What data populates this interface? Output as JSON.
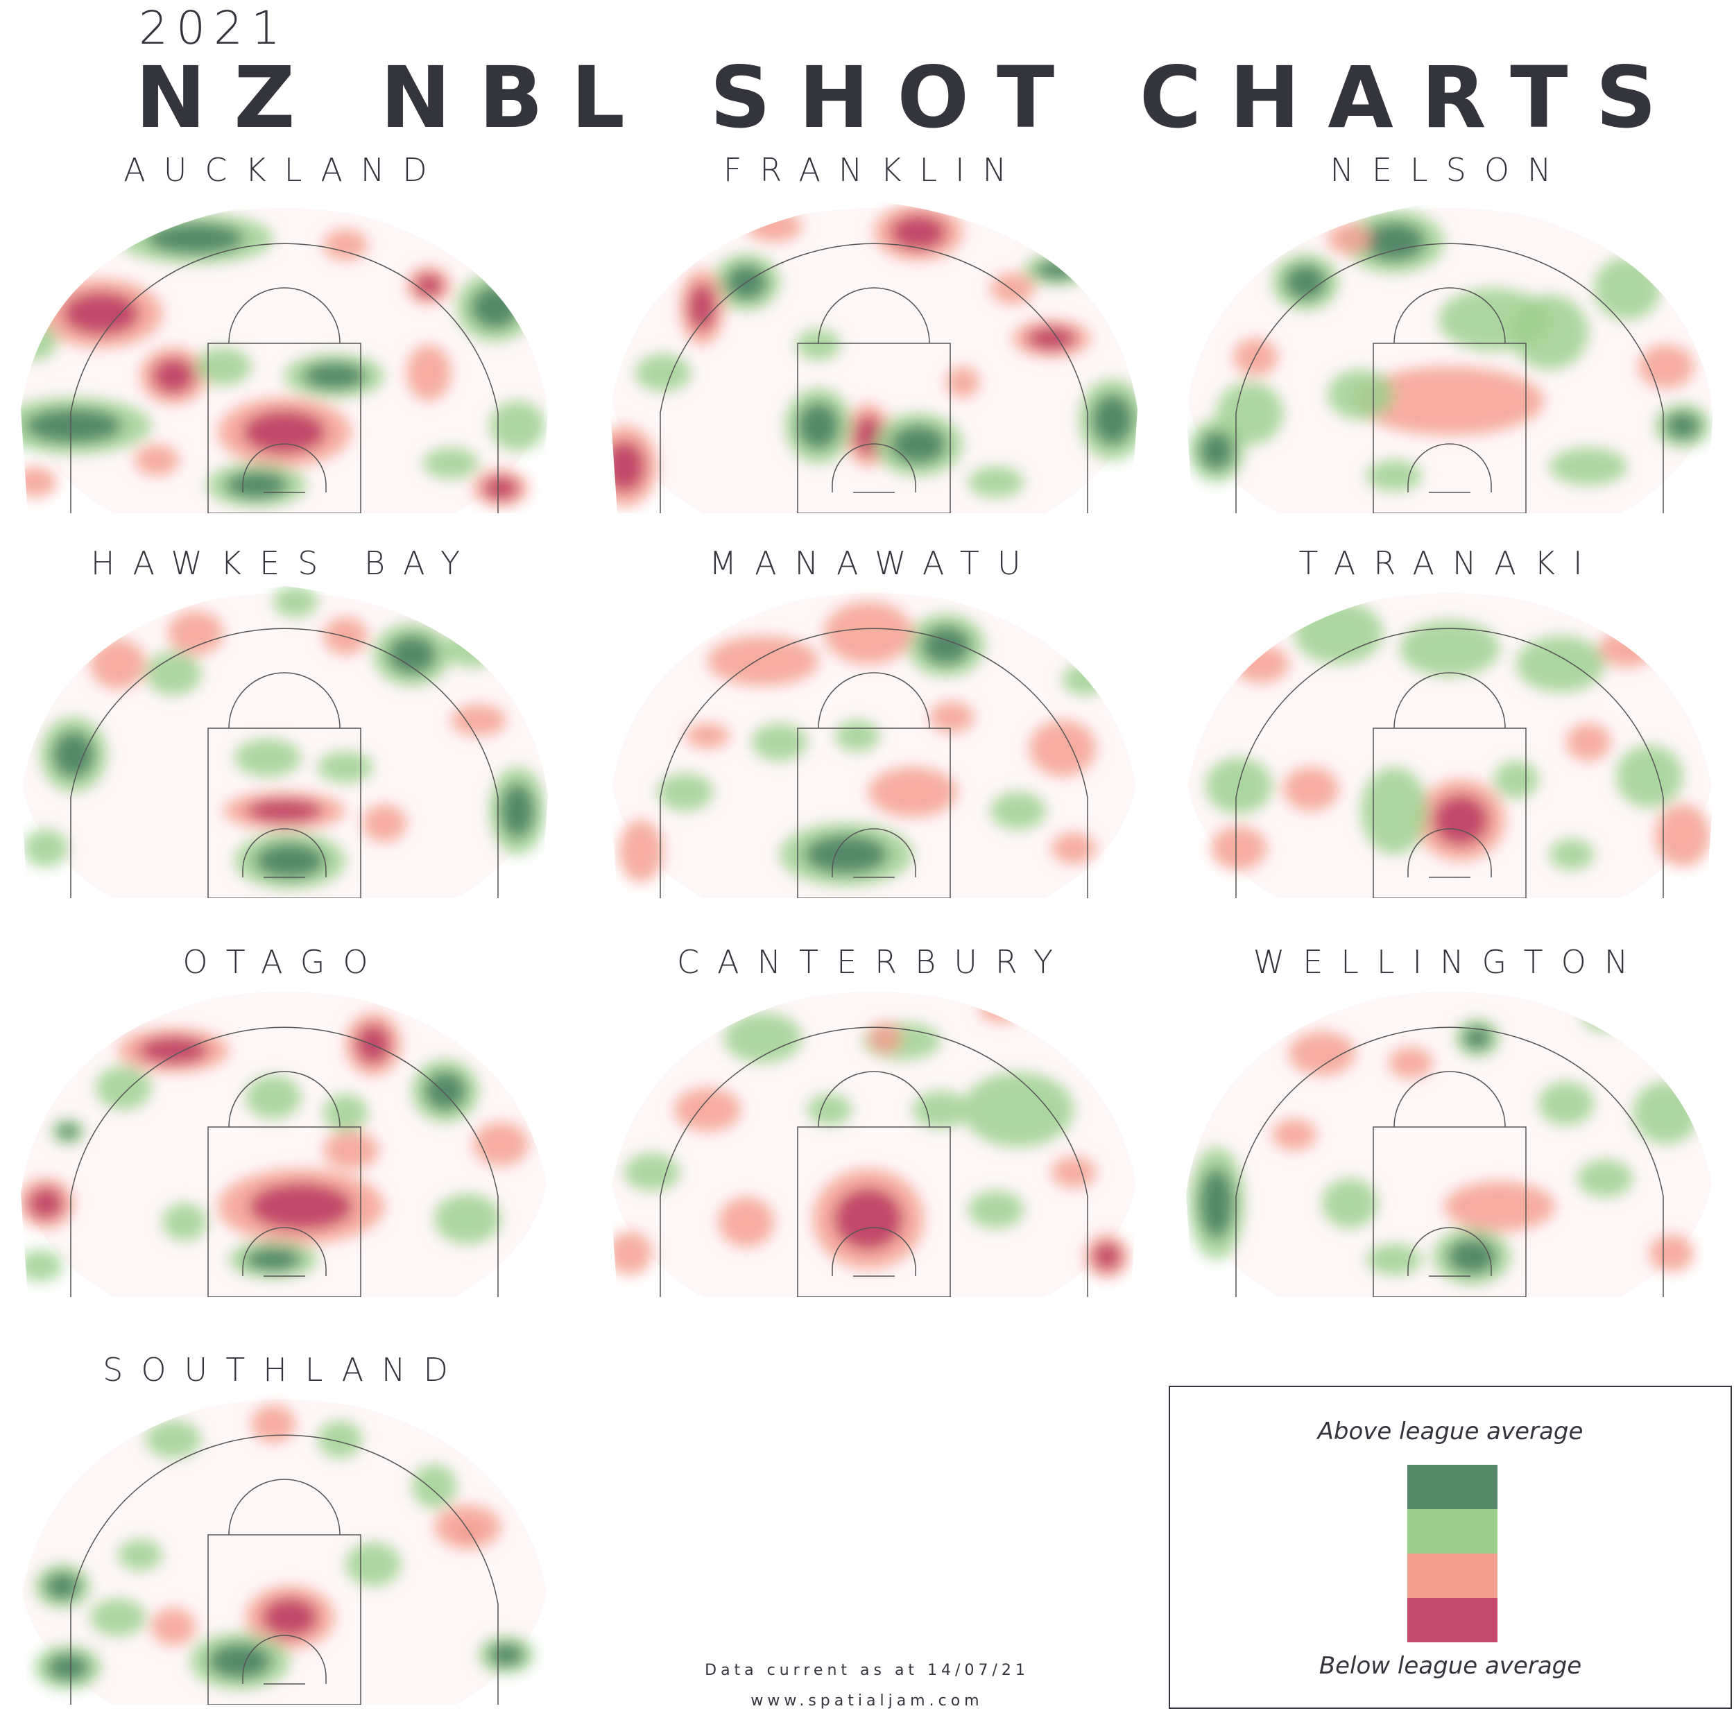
{
  "header": {
    "year": "2021",
    "title": "NZ NBL SHOT CHARTS"
  },
  "colors": {
    "above_dark": "#55896a",
    "above_light": "#9dd08f",
    "below_light": "#f4a090",
    "below_dark": "#c24a6a",
    "court_lines": "#555555"
  },
  "chart_data": [
    {
      "type": "heatmap",
      "title": "AUCKLAND",
      "blobs": [
        [
          "dg",
          0.34,
          0.12,
          0.14,
          0.08
        ],
        [
          "dr",
          0.17,
          0.36,
          0.11,
          0.11
        ],
        [
          "dr",
          0.3,
          0.56,
          0.06,
          0.09
        ],
        [
          "dg",
          0.88,
          0.34,
          0.07,
          0.11
        ],
        [
          "dg",
          0.12,
          0.72,
          0.14,
          0.09
        ],
        [
          "dg",
          0.59,
          0.56,
          0.09,
          0.07
        ],
        [
          "dr",
          0.5,
          0.74,
          0.12,
          0.11
        ],
        [
          "dg",
          0.45,
          0.91,
          0.09,
          0.07
        ],
        [
          "dr",
          0.76,
          0.27,
          0.04,
          0.06
        ],
        [
          "dr",
          0.89,
          0.92,
          0.05,
          0.06
        ],
        [
          "lr",
          0.61,
          0.14,
          0.04,
          0.05
        ],
        [
          "lg",
          0.39,
          0.53,
          0.05,
          0.06
        ],
        [
          "lr",
          0.76,
          0.55,
          0.04,
          0.09
        ],
        [
          "lg",
          0.8,
          0.84,
          0.05,
          0.05
        ],
        [
          "lr",
          0.05,
          0.9,
          0.04,
          0.05
        ],
        [
          "lr",
          0.27,
          0.83,
          0.04,
          0.05
        ],
        [
          "lg",
          0.05,
          0.45,
          0.04,
          0.06
        ],
        [
          "lg",
          0.92,
          0.72,
          0.05,
          0.08
        ]
      ]
    },
    {
      "type": "heatmap",
      "title": "FRANKLIN",
      "blobs": [
        [
          "dr",
          0.58,
          0.1,
          0.08,
          0.09
        ],
        [
          "dg",
          0.27,
          0.26,
          0.06,
          0.09
        ],
        [
          "dr",
          0.19,
          0.34,
          0.04,
          0.12
        ],
        [
          "dr",
          0.82,
          0.44,
          0.07,
          0.06
        ],
        [
          "dg",
          0.93,
          0.7,
          0.06,
          0.13
        ],
        [
          "dg",
          0.83,
          0.22,
          0.06,
          0.05
        ],
        [
          "dr",
          0.05,
          0.85,
          0.06,
          0.13
        ],
        [
          "dr",
          0.49,
          0.75,
          0.04,
          0.1
        ],
        [
          "dg",
          0.4,
          0.72,
          0.06,
          0.12
        ],
        [
          "dg",
          0.58,
          0.78,
          0.08,
          0.1
        ],
        [
          "lr",
          0.32,
          0.08,
          0.05,
          0.05
        ],
        [
          "lg",
          0.12,
          0.55,
          0.05,
          0.06
        ],
        [
          "lr",
          0.75,
          0.28,
          0.04,
          0.05
        ],
        [
          "lg",
          0.4,
          0.46,
          0.04,
          0.05
        ],
        [
          "lr",
          0.66,
          0.58,
          0.03,
          0.05
        ],
        [
          "lg",
          0.72,
          0.9,
          0.05,
          0.05
        ]
      ]
    },
    {
      "type": "heatmap",
      "title": "NELSON",
      "blobs": [
        [
          "dg",
          0.4,
          0.13,
          0.09,
          0.1
        ],
        [
          "dg",
          0.24,
          0.26,
          0.06,
          0.09
        ],
        [
          "dg",
          0.08,
          0.8,
          0.05,
          0.1
        ],
        [
          "dg",
          0.92,
          0.72,
          0.05,
          0.07
        ],
        [
          "lr",
          0.5,
          0.64,
          0.17,
          0.11
        ],
        [
          "lg",
          0.58,
          0.38,
          0.1,
          0.1
        ],
        [
          "lg",
          0.82,
          0.28,
          0.06,
          0.1
        ],
        [
          "lg",
          0.68,
          0.42,
          0.07,
          0.12
        ],
        [
          "lr",
          0.89,
          0.53,
          0.05,
          0.07
        ],
        [
          "lr",
          0.32,
          0.12,
          0.04,
          0.05
        ],
        [
          "lg",
          0.34,
          0.62,
          0.06,
          0.08
        ],
        [
          "lg",
          0.75,
          0.85,
          0.07,
          0.06
        ],
        [
          "lg",
          0.4,
          0.88,
          0.05,
          0.05
        ],
        [
          "lr",
          0.15,
          0.5,
          0.04,
          0.06
        ],
        [
          "lg",
          0.14,
          0.68,
          0.06,
          0.1
        ]
      ]
    },
    {
      "type": "heatmap",
      "title": "HAWKES BAY",
      "blobs": [
        [
          "dg",
          0.12,
          0.54,
          0.06,
          0.12
        ],
        [
          "dg",
          0.73,
          0.22,
          0.07,
          0.1
        ],
        [
          "dr",
          0.5,
          0.72,
          0.11,
          0.06
        ],
        [
          "dg",
          0.51,
          0.88,
          0.1,
          0.09
        ],
        [
          "dg",
          0.92,
          0.72,
          0.05,
          0.14
        ],
        [
          "lr",
          0.34,
          0.15,
          0.05,
          0.07
        ],
        [
          "lr",
          0.61,
          0.16,
          0.04,
          0.06
        ],
        [
          "lr",
          0.2,
          0.25,
          0.05,
          0.08
        ],
        [
          "lg",
          0.3,
          0.28,
          0.05,
          0.07
        ],
        [
          "lg",
          0.47,
          0.55,
          0.06,
          0.06
        ],
        [
          "lg",
          0.61,
          0.58,
          0.05,
          0.05
        ],
        [
          "lr",
          0.85,
          0.43,
          0.05,
          0.05
        ],
        [
          "lg",
          0.12,
          0.1,
          0.05,
          0.05
        ],
        [
          "lg",
          0.52,
          0.05,
          0.04,
          0.05
        ],
        [
          "lr",
          0.68,
          0.76,
          0.04,
          0.06
        ],
        [
          "lg",
          0.07,
          0.84,
          0.04,
          0.06
        ],
        [
          "lg",
          0.84,
          0.2,
          0.05,
          0.06
        ]
      ]
    },
    {
      "type": "heatmap",
      "title": "MANAWATU",
      "blobs": [
        [
          "dg",
          0.63,
          0.19,
          0.07,
          0.1
        ],
        [
          "lr",
          0.3,
          0.24,
          0.1,
          0.08
        ],
        [
          "lr",
          0.49,
          0.15,
          0.08,
          0.1
        ],
        [
          "dg",
          0.45,
          0.86,
          0.12,
          0.1
        ],
        [
          "lr",
          0.57,
          0.66,
          0.08,
          0.08
        ],
        [
          "lr",
          0.84,
          0.52,
          0.06,
          0.09
        ],
        [
          "lr",
          0.08,
          0.85,
          0.04,
          0.1
        ],
        [
          "lg",
          0.33,
          0.5,
          0.05,
          0.06
        ],
        [
          "lg",
          0.47,
          0.48,
          0.04,
          0.05
        ],
        [
          "lr",
          0.64,
          0.42,
          0.04,
          0.05
        ],
        [
          "lg",
          0.16,
          0.66,
          0.05,
          0.06
        ],
        [
          "lr",
          0.86,
          0.84,
          0.04,
          0.05
        ],
        [
          "lg",
          0.76,
          0.72,
          0.05,
          0.06
        ],
        [
          "lr",
          0.2,
          0.48,
          0.04,
          0.04
        ],
        [
          "lg",
          0.88,
          0.3,
          0.04,
          0.05
        ]
      ]
    },
    {
      "type": "heatmap",
      "title": "TARANAKI",
      "blobs": [
        [
          "dr",
          0.52,
          0.75,
          0.08,
          0.13
        ],
        [
          "lg",
          0.4,
          0.72,
          0.06,
          0.14
        ],
        [
          "lg",
          0.3,
          0.15,
          0.08,
          0.1
        ],
        [
          "lg",
          0.5,
          0.2,
          0.09,
          0.09
        ],
        [
          "lg",
          0.7,
          0.25,
          0.08,
          0.09
        ],
        [
          "lg",
          0.86,
          0.61,
          0.06,
          0.1
        ],
        [
          "lg",
          0.12,
          0.64,
          0.06,
          0.09
        ],
        [
          "lr",
          0.92,
          0.8,
          0.05,
          0.1
        ],
        [
          "lr",
          0.12,
          0.84,
          0.05,
          0.07
        ],
        [
          "lr",
          0.25,
          0.65,
          0.05,
          0.07
        ],
        [
          "lr",
          0.75,
          0.5,
          0.04,
          0.06
        ],
        [
          "lr",
          0.82,
          0.2,
          0.05,
          0.06
        ],
        [
          "lr",
          0.16,
          0.25,
          0.05,
          0.06
        ],
        [
          "lg",
          0.62,
          0.62,
          0.04,
          0.06
        ],
        [
          "lg",
          0.72,
          0.86,
          0.04,
          0.05
        ]
      ]
    },
    {
      "type": "heatmap",
      "title": "OTAGO",
      "blobs": [
        [
          "dr",
          0.3,
          0.21,
          0.1,
          0.07
        ],
        [
          "dr",
          0.66,
          0.19,
          0.05,
          0.1
        ],
        [
          "dg",
          0.79,
          0.34,
          0.06,
          0.1
        ],
        [
          "dr",
          0.53,
          0.71,
          0.15,
          0.12
        ],
        [
          "dg",
          0.48,
          0.88,
          0.08,
          0.06
        ],
        [
          "dr",
          0.07,
          0.7,
          0.05,
          0.08
        ],
        [
          "lr",
          0.89,
          0.51,
          0.05,
          0.07
        ],
        [
          "dg",
          0.11,
          0.47,
          0.03,
          0.04
        ],
        [
          "lg",
          0.21,
          0.33,
          0.05,
          0.07
        ],
        [
          "lg",
          0.48,
          0.36,
          0.05,
          0.07
        ],
        [
          "lg",
          0.61,
          0.41,
          0.04,
          0.06
        ],
        [
          "lg",
          0.83,
          0.75,
          0.06,
          0.08
        ],
        [
          "lg",
          0.06,
          0.9,
          0.04,
          0.05
        ],
        [
          "lr",
          0.62,
          0.53,
          0.05,
          0.06
        ],
        [
          "lg",
          0.32,
          0.76,
          0.04,
          0.06
        ],
        [
          "lr",
          0.18,
          0.1,
          0.04,
          0.04
        ]
      ]
    },
    {
      "type": "heatmap",
      "title": "CANTERBURY",
      "blobs": [
        [
          "dr",
          0.49,
          0.75,
          0.1,
          0.16
        ],
        [
          "dr",
          0.92,
          0.87,
          0.04,
          0.07
        ],
        [
          "lg",
          0.3,
          0.17,
          0.07,
          0.08
        ],
        [
          "lg",
          0.55,
          0.18,
          0.07,
          0.06
        ],
        [
          "lg",
          0.76,
          0.4,
          0.1,
          0.12
        ],
        [
          "lr",
          0.2,
          0.4,
          0.06,
          0.07
        ],
        [
          "lr",
          0.27,
          0.76,
          0.05,
          0.08
        ],
        [
          "lr",
          0.06,
          0.86,
          0.04,
          0.07
        ],
        [
          "lr",
          0.52,
          0.17,
          0.03,
          0.05
        ],
        [
          "lg",
          0.1,
          0.6,
          0.05,
          0.06
        ],
        [
          "lg",
          0.62,
          0.4,
          0.05,
          0.06
        ],
        [
          "lr",
          0.73,
          0.08,
          0.04,
          0.04
        ],
        [
          "lg",
          0.72,
          0.72,
          0.05,
          0.06
        ],
        [
          "lr",
          0.86,
          0.6,
          0.04,
          0.05
        ],
        [
          "lg",
          0.42,
          0.4,
          0.04,
          0.05
        ]
      ]
    },
    {
      "type": "heatmap",
      "title": "WELLINGTON",
      "blobs": [
        [
          "dg",
          0.08,
          0.7,
          0.05,
          0.18
        ],
        [
          "dg",
          0.54,
          0.87,
          0.07,
          0.09
        ],
        [
          "lr",
          0.59,
          0.71,
          0.1,
          0.08
        ],
        [
          "lg",
          0.89,
          0.41,
          0.06,
          0.1
        ],
        [
          "dg",
          0.55,
          0.17,
          0.04,
          0.06
        ],
        [
          "lr",
          0.27,
          0.22,
          0.06,
          0.07
        ],
        [
          "lr",
          0.43,
          0.25,
          0.04,
          0.05
        ],
        [
          "lr",
          0.9,
          0.86,
          0.04,
          0.06
        ],
        [
          "lg",
          0.32,
          0.7,
          0.05,
          0.08
        ],
        [
          "lg",
          0.71,
          0.38,
          0.05,
          0.07
        ],
        [
          "lr",
          0.12,
          0.14,
          0.04,
          0.04
        ],
        [
          "lg",
          0.78,
          0.62,
          0.05,
          0.06
        ],
        [
          "lg",
          0.78,
          0.1,
          0.04,
          0.05
        ],
        [
          "lr",
          0.22,
          0.48,
          0.04,
          0.05
        ],
        [
          "lg",
          0.4,
          0.88,
          0.05,
          0.05
        ]
      ]
    },
    {
      "type": "heatmap",
      "title": "SOUTHLAND",
      "blobs": [
        [
          "dr",
          0.51,
          0.72,
          0.08,
          0.1
        ],
        [
          "dg",
          0.42,
          0.86,
          0.09,
          0.09
        ],
        [
          "dg",
          0.11,
          0.88,
          0.06,
          0.07
        ],
        [
          "dg",
          0.1,
          0.62,
          0.05,
          0.07
        ],
        [
          "dg",
          0.9,
          0.84,
          0.05,
          0.06
        ],
        [
          "dr",
          0.83,
          0.45,
          0.02,
          0.03
        ],
        [
          "lr",
          0.83,
          0.43,
          0.06,
          0.07
        ],
        [
          "lg",
          0.77,
          0.3,
          0.04,
          0.07
        ],
        [
          "lr",
          0.48,
          0.1,
          0.04,
          0.06
        ],
        [
          "lg",
          0.3,
          0.15,
          0.05,
          0.06
        ],
        [
          "lg",
          0.6,
          0.15,
          0.04,
          0.06
        ],
        [
          "lr",
          0.13,
          0.12,
          0.05,
          0.05
        ],
        [
          "lg",
          0.66,
          0.55,
          0.05,
          0.07
        ],
        [
          "lg",
          0.24,
          0.52,
          0.04,
          0.05
        ],
        [
          "lr",
          0.3,
          0.75,
          0.04,
          0.06
        ],
        [
          "lg",
          0.2,
          0.72,
          0.05,
          0.06
        ]
      ]
    }
  ],
  "legend": {
    "top_label": "Above league average",
    "bottom_label": "Below league average"
  },
  "footer": {
    "data_note": "Data current as at 14/07/21",
    "website": "www.spatialjam.com"
  }
}
